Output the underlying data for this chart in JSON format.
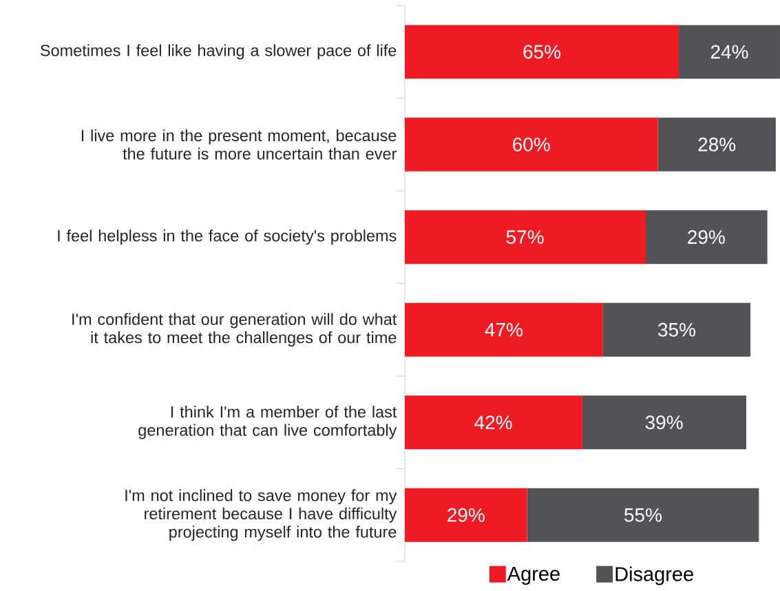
{
  "chart_data": {
    "type": "bar",
    "orientation": "horizontal",
    "stacked": true,
    "categories": [
      "Sometimes I feel like having a slower pace of life",
      "I live more in the present moment, because the future is more uncertain than ever",
      "I feel helpless in the face of society's problems",
      "I'm confident that our generation will do what it takes to meet the challenges of our time",
      "I think I'm a member of the last generation that can live comfortably",
      "I'm not inclined to save money for my retirement because I have difficulty projecting myself into the future"
    ],
    "series": [
      {
        "name": "Agree",
        "color": "#ed1c24",
        "values": [
          65,
          60,
          57,
          47,
          42,
          29
        ],
        "value_labels": [
          "65%",
          "60%",
          "57%",
          "47%",
          "42%",
          "29%"
        ]
      },
      {
        "name": "Disagree",
        "color": "#535256",
        "values": [
          24,
          28,
          29,
          35,
          39,
          55
        ],
        "value_labels": [
          "24%",
          "28%",
          "29%",
          "35%",
          "39%",
          "55%"
        ]
      }
    ],
    "legend": "bottom"
  }
}
